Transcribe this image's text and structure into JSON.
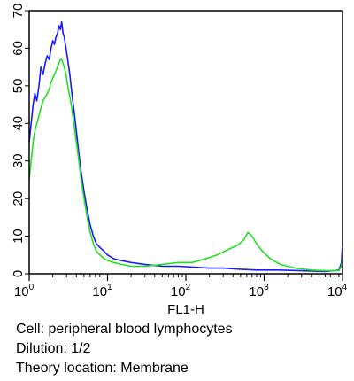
{
  "chart_data": {
    "type": "line",
    "title": "",
    "xlabel": "FL1-H",
    "ylabel": "",
    "x_scale": "log",
    "xlim": [
      1,
      10000
    ],
    "ylim": [
      0,
      70
    ],
    "x_ticks": [
      {
        "value": 1,
        "base": "10",
        "exp": "0"
      },
      {
        "value": 10,
        "base": "10",
        "exp": "1"
      },
      {
        "value": 100,
        "base": "10",
        "exp": "2"
      },
      {
        "value": 1000,
        "base": "10",
        "exp": "3"
      },
      {
        "value": 10000,
        "base": "10",
        "exp": "4"
      }
    ],
    "y_ticks": [
      0,
      10,
      20,
      30,
      40,
      50,
      60,
      70
    ],
    "grid": false,
    "series": [
      {
        "color": "#1a1aff",
        "points": [
          [
            1.0,
            35
          ],
          [
            1.06,
            40
          ],
          [
            1.12,
            45
          ],
          [
            1.18,
            48
          ],
          [
            1.25,
            46
          ],
          [
            1.33,
            50
          ],
          [
            1.41,
            55
          ],
          [
            1.5,
            53
          ],
          [
            1.6,
            56
          ],
          [
            1.7,
            58
          ],
          [
            1.8,
            57
          ],
          [
            1.9,
            60
          ],
          [
            2.0,
            62
          ],
          [
            2.1,
            61
          ],
          [
            2.2,
            63
          ],
          [
            2.3,
            64
          ],
          [
            2.4,
            66
          ],
          [
            2.5,
            65
          ],
          [
            2.6,
            67
          ],
          [
            2.7,
            64
          ],
          [
            2.8,
            63
          ],
          [
            2.95,
            60
          ],
          [
            3.1,
            57
          ],
          [
            3.3,
            53
          ],
          [
            3.5,
            48
          ],
          [
            3.7,
            44
          ],
          [
            4.0,
            38
          ],
          [
            4.3,
            32
          ],
          [
            4.6,
            27
          ],
          [
            5.0,
            22
          ],
          [
            5.5,
            17
          ],
          [
            6.0,
            13
          ],
          [
            6.6,
            10
          ],
          [
            7.2,
            8
          ],
          [
            8.0,
            7
          ],
          [
            9.0,
            6
          ],
          [
            10,
            5
          ],
          [
            12,
            4
          ],
          [
            15,
            3.5
          ],
          [
            20,
            3
          ],
          [
            30,
            2.5
          ],
          [
            50,
            2
          ],
          [
            80,
            2
          ],
          [
            120,
            1.8
          ],
          [
            200,
            1.5
          ],
          [
            300,
            1.5
          ],
          [
            500,
            1.2
          ],
          [
            800,
            1
          ],
          [
            1500,
            1
          ],
          [
            3000,
            0.8
          ],
          [
            6000,
            0.6
          ],
          [
            9000,
            1
          ],
          [
            9700,
            3
          ],
          [
            10000,
            8
          ]
        ]
      },
      {
        "color": "#22e022",
        "points": [
          [
            1.0,
            25
          ],
          [
            1.06,
            30
          ],
          [
            1.12,
            35
          ],
          [
            1.18,
            38
          ],
          [
            1.25,
            40
          ],
          [
            1.33,
            42
          ],
          [
            1.41,
            44
          ],
          [
            1.5,
            46
          ],
          [
            1.6,
            47
          ],
          [
            1.7,
            48
          ],
          [
            1.8,
            49
          ],
          [
            1.9,
            51
          ],
          [
            2.0,
            52
          ],
          [
            2.1,
            53
          ],
          [
            2.2,
            54
          ],
          [
            2.3,
            55
          ],
          [
            2.4,
            56
          ],
          [
            2.5,
            57
          ],
          [
            2.6,
            57
          ],
          [
            2.7,
            56
          ],
          [
            2.8,
            55
          ],
          [
            2.95,
            53
          ],
          [
            3.1,
            50
          ],
          [
            3.3,
            47
          ],
          [
            3.5,
            44
          ],
          [
            3.7,
            40
          ],
          [
            4.0,
            35
          ],
          [
            4.3,
            30
          ],
          [
            4.6,
            25
          ],
          [
            5.0,
            20
          ],
          [
            5.5,
            15
          ],
          [
            6.0,
            11
          ],
          [
            6.6,
            8
          ],
          [
            7.2,
            6
          ],
          [
            8.0,
            5
          ],
          [
            9.0,
            4
          ],
          [
            10,
            3.5
          ],
          [
            12,
            3
          ],
          [
            15,
            2.5
          ],
          [
            20,
            2
          ],
          [
            30,
            2
          ],
          [
            50,
            2.5
          ],
          [
            80,
            3
          ],
          [
            120,
            3
          ],
          [
            180,
            4
          ],
          [
            250,
            5
          ],
          [
            350,
            6.5
          ],
          [
            450,
            7.5
          ],
          [
            550,
            9
          ],
          [
            620,
            11
          ],
          [
            700,
            10
          ],
          [
            800,
            8
          ],
          [
            950,
            6
          ],
          [
            1200,
            4
          ],
          [
            1600,
            2.5
          ],
          [
            2500,
            1.5
          ],
          [
            4000,
            1
          ],
          [
            6000,
            0.8
          ],
          [
            9000,
            0.8
          ],
          [
            9700,
            2
          ],
          [
            10000,
            4
          ]
        ]
      }
    ]
  },
  "caption": {
    "line1": "Cell: peripheral blood lymphocytes",
    "line2": "Dilution: 1/2",
    "line3": "Theory location: Membrane"
  }
}
